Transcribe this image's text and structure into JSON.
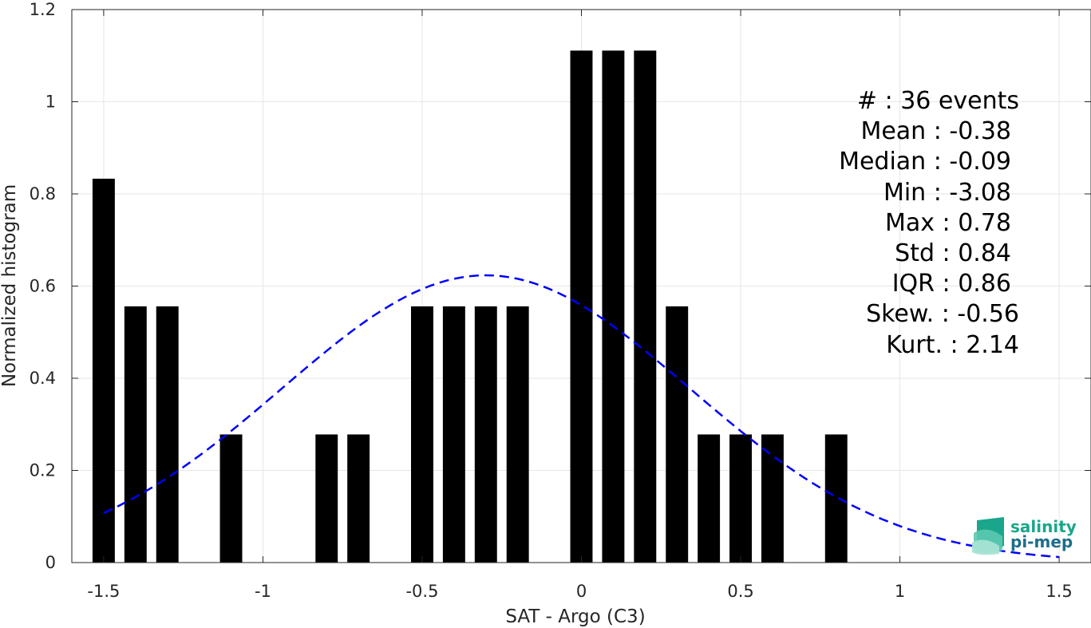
{
  "chart_data": {
    "type": "bar",
    "xlabel": "SAT - Argo (C3)",
    "ylabel": "Normalized histogram",
    "xlim": [
      -1.6,
      1.6
    ],
    "ylim": [
      0,
      1.2
    ],
    "x_ticks": [
      -1.5,
      -1,
      -0.5,
      0,
      0.5,
      1,
      1.5
    ],
    "x_tick_labels": [
      "-1.5",
      "-1",
      "-0.5",
      "0",
      "0.5",
      "1",
      "1.5"
    ],
    "y_ticks": [
      0,
      0.2,
      0.4,
      0.6,
      0.8,
      1,
      1.2
    ],
    "y_tick_labels": [
      "0",
      "0.2",
      "0.4",
      "0.6",
      "0.8",
      "1",
      "1.2"
    ],
    "grid": true,
    "bar_color": "#000000",
    "bin_width": 0.1,
    "bars": [
      {
        "x": -1.5,
        "y": 0.833
      },
      {
        "x": -1.4,
        "y": 0.556
      },
      {
        "x": -1.3,
        "y": 0.556
      },
      {
        "x": -1.2,
        "y": 0
      },
      {
        "x": -1.1,
        "y": 0.278
      },
      {
        "x": -1.0,
        "y": 0
      },
      {
        "x": -0.9,
        "y": 0
      },
      {
        "x": -0.8,
        "y": 0.278
      },
      {
        "x": -0.7,
        "y": 0.278
      },
      {
        "x": -0.6,
        "y": 0
      },
      {
        "x": -0.5,
        "y": 0.556
      },
      {
        "x": -0.4,
        "y": 0.556
      },
      {
        "x": -0.3,
        "y": 0.556
      },
      {
        "x": -0.2,
        "y": 0.556
      },
      {
        "x": -0.1,
        "y": 0
      },
      {
        "x": 0.0,
        "y": 1.111
      },
      {
        "x": 0.1,
        "y": 1.111
      },
      {
        "x": 0.2,
        "y": 1.111
      },
      {
        "x": 0.3,
        "y": 0.556
      },
      {
        "x": 0.4,
        "y": 0.278
      },
      {
        "x": 0.5,
        "y": 0.278
      },
      {
        "x": 0.6,
        "y": 0.278
      },
      {
        "x": 0.7,
        "y": 0
      },
      {
        "x": 0.8,
        "y": 0.278
      }
    ],
    "fit_curve": {
      "type": "normal",
      "mean": -0.3,
      "std": 0.64,
      "x_range": [
        -1.5,
        1.5
      ],
      "color": "#0000ff",
      "style": "dashed"
    },
    "stats": [
      "#  : 36 events",
      "Mean : -0.38",
      "Median : -0.09",
      "Min : -3.08",
      "Max : 0.78",
      "Std : 0.84",
      "IQR : 0.86",
      "Skew. : -0.56",
      "Kurt. : 2.14"
    ]
  },
  "logo": {
    "line1": "salinity",
    "line2": "pi-mep",
    "color_line1": "#1aa68a",
    "color_line2": "#1d6e8a"
  }
}
